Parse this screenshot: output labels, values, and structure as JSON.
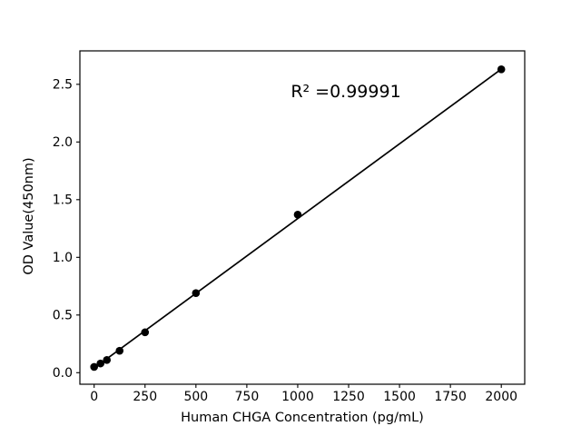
{
  "figure": {
    "background": "#ffffff",
    "foreground": "#000000"
  },
  "chart_data": {
    "type": "scatter",
    "title": "",
    "xlabel": "Human CHGA Concentration (pg/mL)",
    "ylabel": "OD Value(450nm)",
    "annotation": "R² =0.99991",
    "r_squared_value": 0.99991,
    "x": [
      0,
      31.25,
      62.5,
      125,
      250,
      500,
      1000,
      2000
    ],
    "y": [
      0.05,
      0.08,
      0.11,
      0.19,
      0.35,
      0.69,
      1.37,
      2.63
    ],
    "fit_line": {
      "x": [
        0,
        2000
      ],
      "y": [
        0.04,
        2.632
      ]
    },
    "xticks": {
      "values": [
        0,
        250,
        500,
        750,
        1000,
        1250,
        1500,
        1750,
        2000
      ],
      "labels": [
        "0",
        "250",
        "500",
        "750",
        "1000",
        "1250",
        "1500",
        "1750",
        "2000"
      ]
    },
    "yticks": {
      "values": [
        0.0,
        0.5,
        1.0,
        1.5,
        2.0,
        2.5
      ],
      "labels": [
        "0.0",
        "0.5",
        "1.0",
        "1.5",
        "2.0",
        "2.5"
      ]
    },
    "xlim": [
      -70,
      2115
    ],
    "ylim": [
      -0.1,
      2.79
    ],
    "grid": false,
    "legend": null,
    "marker_color": "#000000",
    "line_color": "#000000",
    "axis_color": "#000000",
    "marker_radius": 4.3
  }
}
